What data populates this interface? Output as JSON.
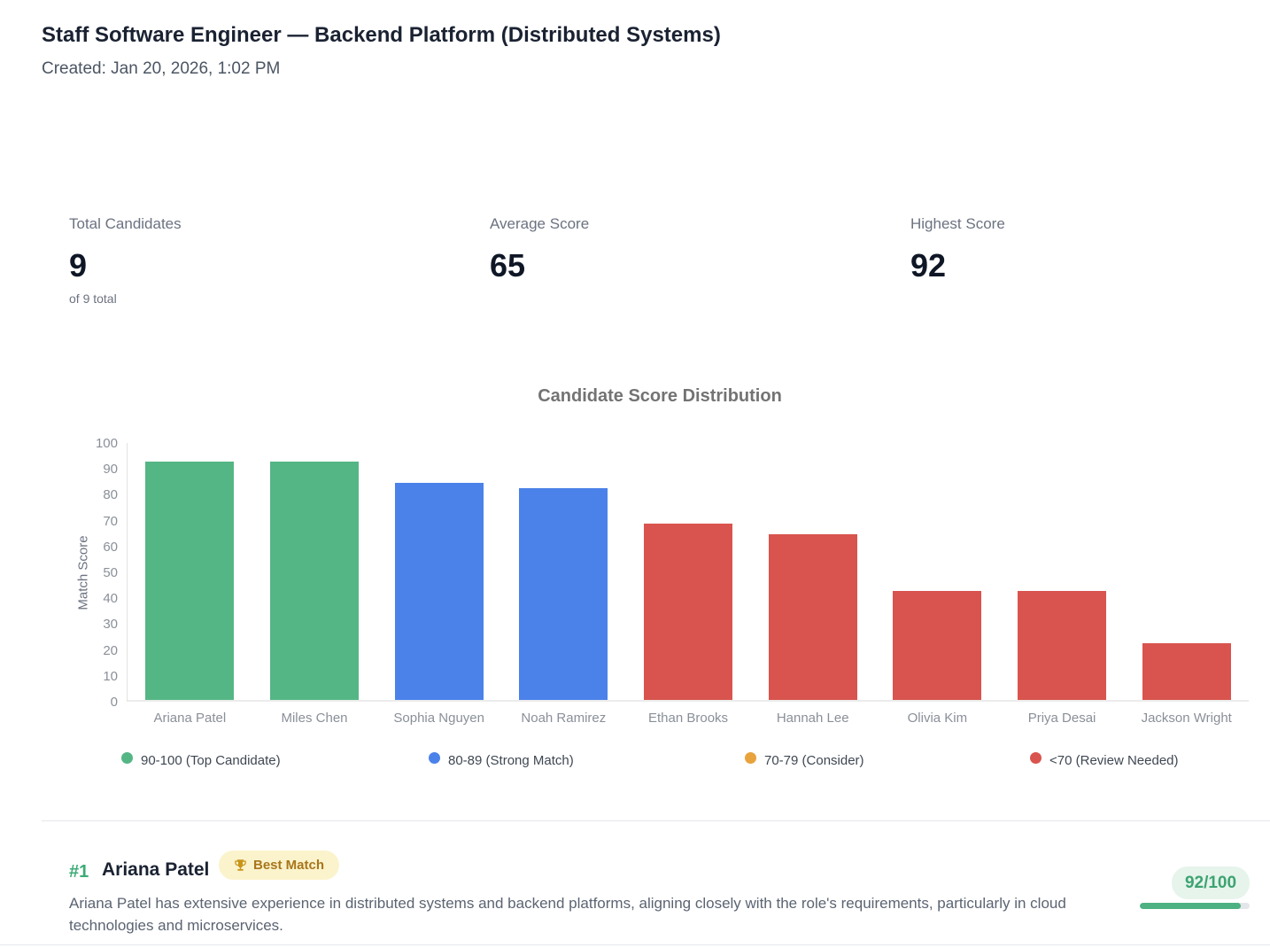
{
  "header": {
    "title": "Staff Software Engineer — Backend Platform (Distributed Systems)",
    "created": "Created: Jan 20, 2026, 1:02 PM"
  },
  "stats": [
    {
      "label": "Total Candidates",
      "value": "9",
      "sub": "of 9 total"
    },
    {
      "label": "Average Score",
      "value": "65",
      "sub": ""
    },
    {
      "label": "Highest Score",
      "value": "92",
      "sub": ""
    }
  ],
  "chart_data": {
    "type": "bar",
    "title": "Candidate Score Distribution",
    "xlabel": "",
    "ylabel": "Match Score",
    "ylim": [
      0,
      100
    ],
    "ytick_step": 10,
    "grid": false,
    "categories": [
      "Ariana Patel",
      "Miles Chen",
      "Sophia Nguyen",
      "Noah Ramirez",
      "Ethan Brooks",
      "Hannah Lee",
      "Olivia Kim",
      "Priya Desai",
      "Jackson Wright"
    ],
    "values": [
      92,
      92,
      84,
      82,
      68,
      64,
      42,
      42,
      22
    ],
    "bar_colors": [
      "green",
      "green",
      "blue",
      "blue",
      "red",
      "red",
      "red",
      "red",
      "red"
    ],
    "palette": {
      "green": "#55b685",
      "blue": "#4b82ea",
      "orange": "#e8a33d",
      "red": "#d9544e"
    },
    "legend_position": "bottom",
    "legend": [
      {
        "label": "90-100 (Top Candidate)",
        "color": "green"
      },
      {
        "label": "80-89 (Strong Match)",
        "color": "blue"
      },
      {
        "label": "70-79 (Consider)",
        "color": "orange"
      },
      {
        "label": "<70 (Review Needed)",
        "color": "red"
      }
    ]
  },
  "candidate": {
    "rank": "#1",
    "name": "Ariana Patel",
    "badge_label": "Best Match",
    "badge_icon": "trophy-icon",
    "summary": "Ariana Patel has extensive experience in distributed systems and backend platforms, aligning closely with the role's requirements, particularly in cloud technologies and microservices.",
    "score": 92,
    "score_max": 100,
    "score_display": "92/100",
    "score_color": "#3ea371"
  }
}
